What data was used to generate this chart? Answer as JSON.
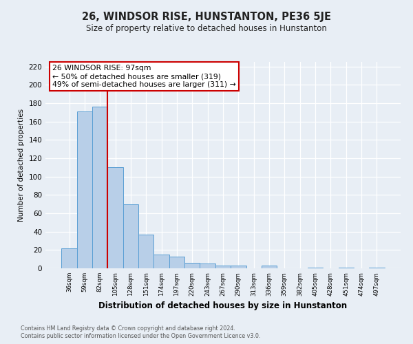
{
  "title": "26, WINDSOR RISE, HUNSTANTON, PE36 5JE",
  "subtitle": "Size of property relative to detached houses in Hunstanton",
  "xlabel": "Distribution of detached houses by size in Hunstanton",
  "ylabel": "Number of detached properties",
  "bar_labels": [
    "36sqm",
    "59sqm",
    "82sqm",
    "105sqm",
    "128sqm",
    "151sqm",
    "174sqm",
    "197sqm",
    "220sqm",
    "243sqm",
    "267sqm",
    "290sqm",
    "313sqm",
    "336sqm",
    "359sqm",
    "382sqm",
    "405sqm",
    "428sqm",
    "451sqm",
    "474sqm",
    "497sqm"
  ],
  "bar_values": [
    22,
    171,
    176,
    110,
    70,
    37,
    15,
    13,
    6,
    5,
    3,
    3,
    0,
    3,
    0,
    0,
    1,
    0,
    1,
    0,
    1
  ],
  "bar_color": "#b8cfe8",
  "bar_edge_color": "#5a9fd4",
  "vline_color": "#cc0000",
  "annotation_title": "26 WINDSOR RISE: 97sqm",
  "annotation_line1": "← 50% of detached houses are smaller (319)",
  "annotation_line2": "49% of semi-detached houses are larger (311) →",
  "annotation_box_color": "#ffffff",
  "annotation_box_edge": "#cc0000",
  "ylim": [
    0,
    225
  ],
  "yticks": [
    0,
    20,
    40,
    60,
    80,
    100,
    120,
    140,
    160,
    180,
    200,
    220
  ],
  "background_color": "#e8eef5",
  "grid_color": "#ffffff",
  "footer1": "Contains HM Land Registry data © Crown copyright and database right 2024.",
  "footer2": "Contains public sector information licensed under the Open Government Licence v3.0."
}
